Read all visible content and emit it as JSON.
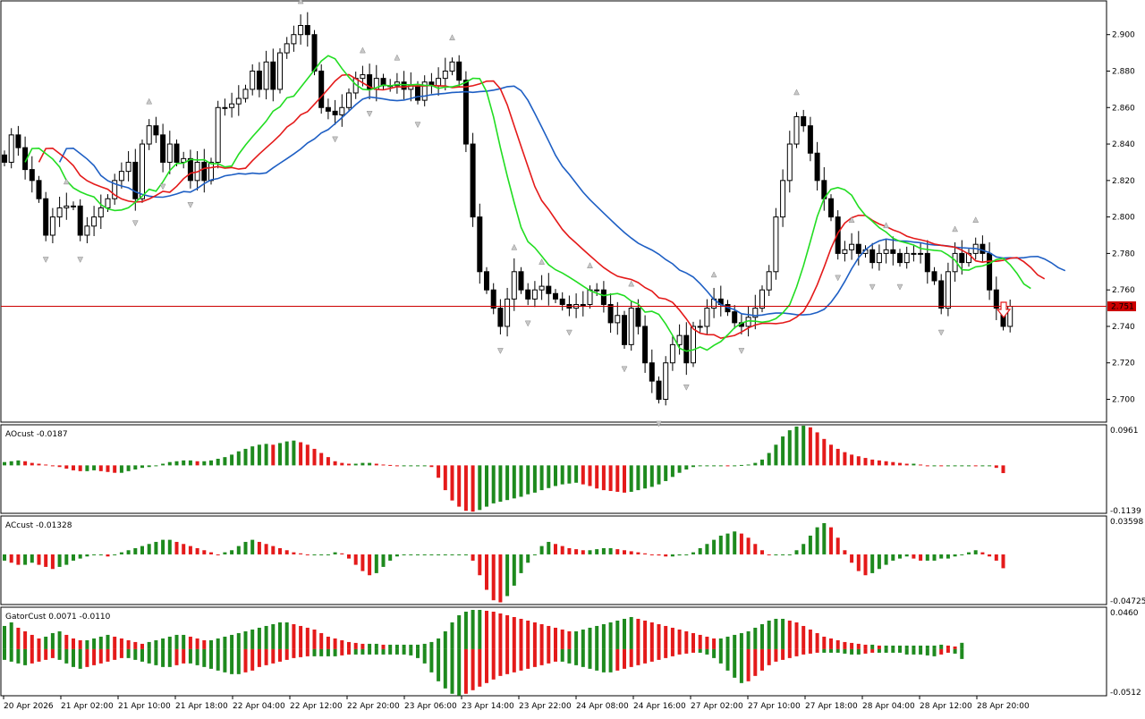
{
  "chart_data": {
    "type": "candlestick",
    "symbol_price_axis": [
      "2.900",
      "2.880",
      "2.860",
      "2.840",
      "2.820",
      "2.800",
      "2.780",
      "2.760",
      "2.740",
      "2.720",
      "2.700"
    ],
    "price_range": [
      2.688,
      2.918
    ],
    "current_price": 2.751,
    "current_price_label": "2.751",
    "colors": {
      "candle_up": "#ffffff",
      "candle_down": "#000000",
      "jaw": "#1e5fc4",
      "teeth": "#e41a1a",
      "lips": "#22dd22",
      "bar_up": "#1e8a1e",
      "bar_down": "#e41a1a",
      "price_line": "#cc0000"
    },
    "time_labels": [
      "20 Apr 2026",
      "21 Apr 02:00",
      "21 Apr 10:00",
      "21 Apr 18:00",
      "22 Apr 04:00",
      "22 Apr 12:00",
      "22 Apr 20:00",
      "23 Apr 06:00",
      "23 Apr 14:00",
      "23 Apr 22:00",
      "24 Apr 08:00",
      "24 Apr 16:00",
      "27 Apr 02:00",
      "27 Apr 10:00",
      "27 Apr 18:00",
      "28 Apr 04:00",
      "28 Apr 12:00",
      "28 Apr 20:00"
    ],
    "closes": [
      2.83,
      2.845,
      2.838,
      2.826,
      2.82,
      2.81,
      2.79,
      2.8,
      2.805,
      2.806,
      2.806,
      2.79,
      2.795,
      2.8,
      2.805,
      2.81,
      2.82,
      2.825,
      2.83,
      2.81,
      2.84,
      2.85,
      2.845,
      2.83,
      2.84,
      2.83,
      2.832,
      2.82,
      2.83,
      2.82,
      2.83,
      2.86,
      2.86,
      2.862,
      2.865,
      2.87,
      2.88,
      2.87,
      2.885,
      2.87,
      2.89,
      2.895,
      2.9,
      2.905,
      2.9,
      2.88,
      2.86,
      2.858,
      2.856,
      2.86,
      2.868,
      2.876,
      2.878,
      2.87,
      2.876,
      2.872,
      2.872,
      2.874,
      2.87,
      2.872,
      2.864,
      2.874,
      2.872,
      2.876,
      2.88,
      2.885,
      2.875,
      2.84,
      2.8,
      2.77,
      2.76,
      2.75,
      2.74,
      2.755,
      2.77,
      2.76,
      2.755,
      2.76,
      2.762,
      2.758,
      2.755,
      2.752,
      2.75,
      2.752,
      2.752,
      2.76,
      2.76,
      2.752,
      2.742,
      2.746,
      2.73,
      2.75,
      2.74,
      2.72,
      2.71,
      2.7,
      2.72,
      2.73,
      2.735,
      2.72,
      2.74,
      2.74,
      2.75,
      2.755,
      2.752,
      2.748,
      2.742,
      2.74,
      2.745,
      2.75,
      2.76,
      2.77,
      2.8,
      2.82,
      2.84,
      2.855,
      2.85,
      2.835,
      2.82,
      2.81,
      2.8,
      2.78,
      2.782,
      2.785,
      2.78,
      2.782,
      2.775,
      2.78,
      2.782,
      2.78,
      2.775,
      2.78,
      2.78,
      2.78,
      2.77,
      2.765,
      2.75,
      2.77,
      2.78,
      2.775,
      2.78,
      2.785,
      2.78,
      2.76,
      2.75,
      2.74,
      2.751
    ],
    "indicators": [
      {
        "name": "AOcust",
        "value": "-0.0187",
        "scale_top": "0.0961",
        "scale_bottom": "-0.1139",
        "range": [
          -0.1139,
          0.0961
        ],
        "values": [
          0.008,
          0.01,
          0.012,
          0.01,
          0.006,
          0.004,
          0.002,
          0.0,
          -0.004,
          -0.008,
          -0.012,
          -0.014,
          -0.014,
          -0.012,
          -0.014,
          -0.016,
          -0.018,
          -0.018,
          -0.014,
          -0.01,
          -0.006,
          -0.004,
          0.0,
          0.004,
          0.008,
          0.01,
          0.012,
          0.012,
          0.01,
          0.01,
          0.012,
          0.016,
          0.02,
          0.026,
          0.034,
          0.04,
          0.046,
          0.05,
          0.052,
          0.05,
          0.054,
          0.058,
          0.06,
          0.056,
          0.05,
          0.04,
          0.03,
          0.02,
          0.01,
          0.006,
          0.004,
          0.004,
          0.006,
          0.006,
          0.004,
          0.002,
          0.001,
          0.0,
          0.0,
          0.0,
          0.0,
          0.0,
          -0.004,
          -0.03,
          -0.06,
          -0.085,
          -0.1,
          -0.11,
          -0.112,
          -0.108,
          -0.1,
          -0.092,
          -0.088,
          -0.084,
          -0.08,
          -0.076,
          -0.07,
          -0.066,
          -0.06,
          -0.055,
          -0.05,
          -0.046,
          -0.044,
          -0.042,
          -0.046,
          -0.05,
          -0.056,
          -0.06,
          -0.062,
          -0.064,
          -0.066,
          -0.064,
          -0.06,
          -0.056,
          -0.052,
          -0.046,
          -0.038,
          -0.028,
          -0.018,
          -0.01,
          -0.004,
          -0.002,
          -0.001,
          0.0,
          0.0,
          -0.001,
          0.0,
          0.001,
          0.002,
          0.006,
          0.014,
          0.03,
          0.05,
          0.07,
          0.085,
          0.094,
          0.096,
          0.092,
          0.08,
          0.064,
          0.05,
          0.04,
          0.032,
          0.026,
          0.022,
          0.018,
          0.014,
          0.012,
          0.01,
          0.008,
          0.006,
          0.004,
          0.004,
          0.002,
          0.0,
          0.0,
          -0.002,
          -0.002,
          -0.001,
          0.0,
          0.0,
          -0.001,
          0.0,
          0.0,
          -0.006,
          -0.0187
        ]
      },
      {
        "name": "ACcust",
        "value": "-0.01328",
        "scale_top": "0.03598",
        "scale_bottom": "-0.04725",
        "range": [
          -0.04725,
          0.03598
        ],
        "values": [
          -0.006,
          -0.008,
          -0.01,
          -0.01,
          -0.008,
          -0.01,
          -0.012,
          -0.014,
          -0.012,
          -0.01,
          -0.006,
          -0.004,
          -0.002,
          0.0,
          0.0,
          -0.002,
          0.0,
          0.002,
          0.004,
          0.006,
          0.008,
          0.01,
          0.012,
          0.014,
          0.014,
          0.012,
          0.01,
          0.008,
          0.006,
          0.004,
          0.002,
          0.0,
          0.002,
          0.004,
          0.008,
          0.012,
          0.014,
          0.012,
          0.01,
          0.008,
          0.006,
          0.004,
          0.002,
          0.001,
          0.0,
          0.0,
          0.0,
          0.0,
          0.002,
          0.001,
          -0.004,
          -0.01,
          -0.016,
          -0.02,
          -0.018,
          -0.012,
          -0.006,
          -0.002,
          0.0,
          0.0,
          0.0,
          0.0,
          0.0,
          0.0,
          0.0,
          0.0,
          0.0,
          0.0,
          -0.006,
          -0.02,
          -0.034,
          -0.044,
          -0.046,
          -0.04,
          -0.03,
          -0.018,
          -0.008,
          0.0,
          0.008,
          0.012,
          0.01,
          0.008,
          0.006,
          0.005,
          0.004,
          0.004,
          0.005,
          0.006,
          0.006,
          0.005,
          0.004,
          0.003,
          0.002,
          0.001,
          0.0,
          -0.001,
          -0.002,
          -0.002,
          -0.001,
          0.0,
          0.002,
          0.006,
          0.01,
          0.014,
          0.018,
          0.02,
          0.022,
          0.02,
          0.016,
          0.01,
          0.004,
          0.0,
          0.0,
          0.0,
          0.0,
          0.004,
          0.01,
          0.018,
          0.026,
          0.03,
          0.026,
          0.016,
          0.004,
          -0.008,
          -0.016,
          -0.02,
          -0.018,
          -0.014,
          -0.01,
          -0.006,
          -0.004,
          -0.002,
          -0.004,
          -0.006,
          -0.006,
          -0.006,
          -0.004,
          -0.004,
          -0.002,
          0.0,
          0.002,
          0.004,
          0.002,
          -0.002,
          -0.006,
          -0.01328
        ]
      },
      {
        "name": "GatorCust",
        "value": "0.0071 -0.0110",
        "scale_top": "0.0460",
        "scale_bottom": "-0.0512",
        "range": [
          -0.0512,
          0.046
        ],
        "upper": [
          0.026,
          0.03,
          0.024,
          0.02,
          0.016,
          0.012,
          0.014,
          0.018,
          0.02,
          0.016,
          0.012,
          0.01,
          0.01,
          0.012,
          0.014,
          0.016,
          0.014,
          0.012,
          0.01,
          0.008,
          0.006,
          0.008,
          0.01,
          0.012,
          0.014,
          0.016,
          0.016,
          0.014,
          0.012,
          0.01,
          0.01,
          0.012,
          0.014,
          0.016,
          0.018,
          0.02,
          0.022,
          0.024,
          0.026,
          0.028,
          0.03,
          0.03,
          0.028,
          0.026,
          0.024,
          0.022,
          0.018,
          0.014,
          0.012,
          0.01,
          0.008,
          0.007,
          0.006,
          0.006,
          0.006,
          0.005,
          0.005,
          0.005,
          0.005,
          0.005,
          0.005,
          0.006,
          0.008,
          0.012,
          0.02,
          0.03,
          0.038,
          0.042,
          0.044,
          0.044,
          0.043,
          0.042,
          0.04,
          0.038,
          0.036,
          0.034,
          0.032,
          0.03,
          0.028,
          0.026,
          0.024,
          0.022,
          0.02,
          0.02,
          0.022,
          0.024,
          0.026,
          0.028,
          0.03,
          0.032,
          0.034,
          0.036,
          0.034,
          0.032,
          0.03,
          0.028,
          0.026,
          0.024,
          0.022,
          0.02,
          0.018,
          0.016,
          0.014,
          0.012,
          0.012,
          0.014,
          0.016,
          0.018,
          0.02,
          0.024,
          0.028,
          0.032,
          0.034,
          0.034,
          0.032,
          0.03,
          0.026,
          0.022,
          0.018,
          0.014,
          0.012,
          0.01,
          0.008,
          0.007,
          0.006,
          0.005,
          0.005,
          0.004,
          0.004,
          0.004,
          0.004,
          0.004,
          0.004,
          0.004,
          0.004,
          0.004,
          0.005,
          0.004,
          0.003,
          0.0071
        ],
        "lower": [
          -0.012,
          -0.014,
          -0.016,
          -0.018,
          -0.016,
          -0.014,
          -0.012,
          -0.01,
          -0.012,
          -0.016,
          -0.02,
          -0.022,
          -0.02,
          -0.018,
          -0.016,
          -0.014,
          -0.012,
          -0.01,
          -0.01,
          -0.012,
          -0.014,
          -0.016,
          -0.018,
          -0.02,
          -0.02,
          -0.018,
          -0.016,
          -0.016,
          -0.018,
          -0.02,
          -0.022,
          -0.024,
          -0.026,
          -0.028,
          -0.028,
          -0.026,
          -0.024,
          -0.02,
          -0.018,
          -0.016,
          -0.014,
          -0.012,
          -0.01,
          -0.009,
          -0.008,
          -0.008,
          -0.008,
          -0.008,
          -0.008,
          -0.007,
          -0.006,
          -0.006,
          -0.006,
          -0.006,
          -0.006,
          -0.006,
          -0.006,
          -0.006,
          -0.006,
          -0.007,
          -0.01,
          -0.016,
          -0.026,
          -0.036,
          -0.044,
          -0.05,
          -0.052,
          -0.05,
          -0.046,
          -0.042,
          -0.038,
          -0.034,
          -0.03,
          -0.028,
          -0.026,
          -0.024,
          -0.022,
          -0.02,
          -0.018,
          -0.016,
          -0.014,
          -0.014,
          -0.016,
          -0.018,
          -0.02,
          -0.022,
          -0.024,
          -0.026,
          -0.026,
          -0.024,
          -0.022,
          -0.02,
          -0.018,
          -0.016,
          -0.014,
          -0.012,
          -0.01,
          -0.008,
          -0.006,
          -0.005,
          -0.004,
          -0.004,
          -0.006,
          -0.01,
          -0.016,
          -0.024,
          -0.032,
          -0.038,
          -0.036,
          -0.03,
          -0.024,
          -0.018,
          -0.014,
          -0.012,
          -0.01,
          -0.008,
          -0.006,
          -0.005,
          -0.004,
          -0.004,
          -0.004,
          -0.004,
          -0.005,
          -0.006,
          -0.006,
          -0.005,
          -0.004,
          -0.004,
          -0.004,
          -0.004,
          -0.004,
          -0.006,
          -0.006,
          -0.006,
          -0.007,
          -0.008,
          -0.006,
          -0.004,
          -0.005,
          -0.011
        ]
      }
    ]
  }
}
